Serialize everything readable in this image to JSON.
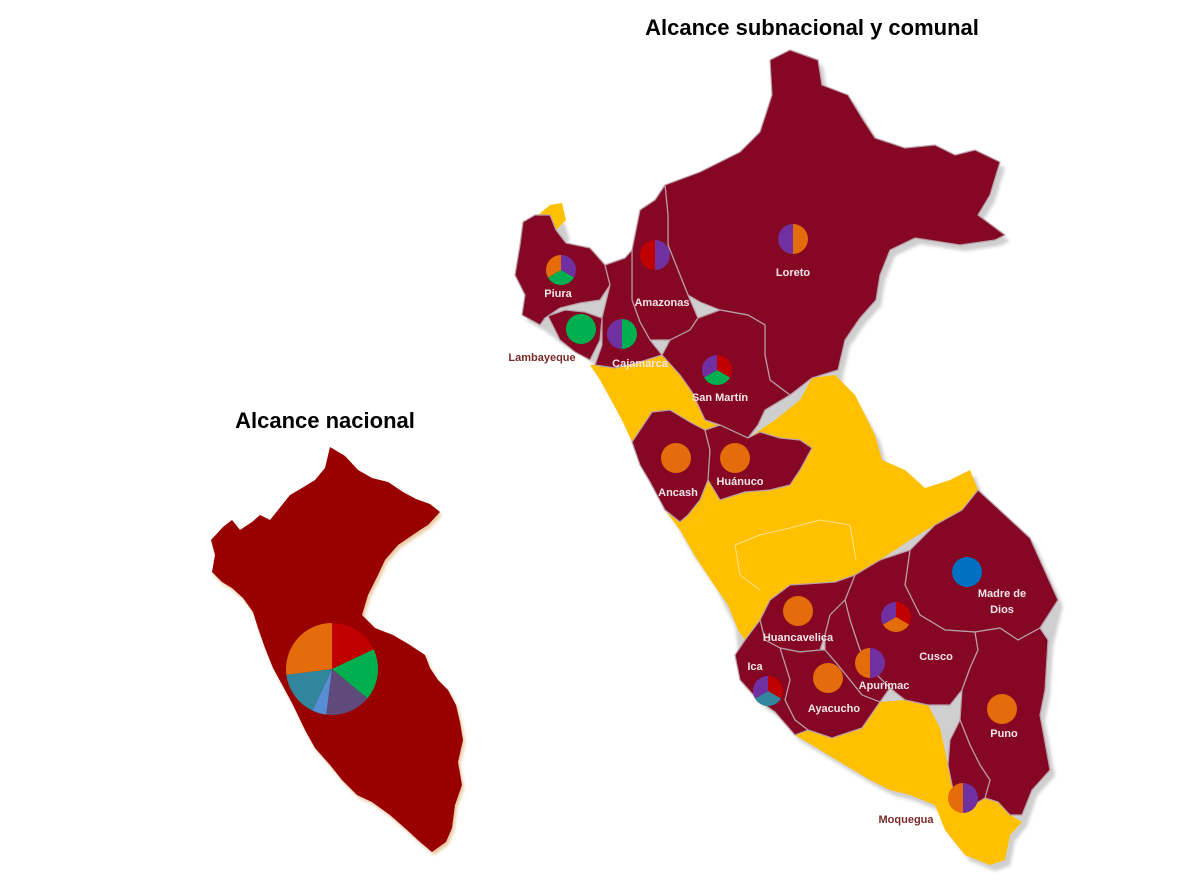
{
  "titles": {
    "subnational": "Alcance subnacional y comunal",
    "national": "Alcance nacional"
  },
  "colors": {
    "region_fill": "#850724",
    "highlight_fill": "#FFC000",
    "national_fill": "#990000",
    "border": "#b9a0a8",
    "shadow": "#cfcfcf",
    "red": "#C00000",
    "purple": "#7030A0",
    "orange": "#E46C0A",
    "green": "#00B050",
    "blue": "#0070C0",
    "teal": "#31859C",
    "lightblue": "#558ED5",
    "slate": "#604A7B"
  },
  "regions": [
    {
      "name": "Piura",
      "pie": [
        {
          "c": "purple",
          "v": 1
        },
        {
          "c": "green",
          "v": 1
        },
        {
          "c": "orange",
          "v": 1
        }
      ]
    },
    {
      "name": "Lambayeque",
      "pie": [
        {
          "c": "green",
          "v": 1
        }
      ]
    },
    {
      "name": "Cajamarca",
      "pie": [
        {
          "c": "green",
          "v": 1
        },
        {
          "c": "purple",
          "v": 1
        }
      ]
    },
    {
      "name": "Amazonas",
      "pie": [
        {
          "c": "purple",
          "v": 1
        },
        {
          "c": "red",
          "v": 1
        }
      ]
    },
    {
      "name": "Loreto",
      "pie": [
        {
          "c": "orange",
          "v": 1
        },
        {
          "c": "purple",
          "v": 1
        }
      ]
    },
    {
      "name": "San Martín",
      "pie": [
        {
          "c": "red",
          "v": 1
        },
        {
          "c": "green",
          "v": 1
        },
        {
          "c": "purple",
          "v": 1
        }
      ]
    },
    {
      "name": "Ancash",
      "pie": [
        {
          "c": "orange",
          "v": 1
        }
      ]
    },
    {
      "name": "Huánuco",
      "pie": [
        {
          "c": "orange",
          "v": 1
        }
      ]
    },
    {
      "name": "Madre de Dios",
      "pie": [
        {
          "c": "blue",
          "v": 1
        }
      ]
    },
    {
      "name": "Huancavelica",
      "pie": [
        {
          "c": "orange",
          "v": 1
        }
      ]
    },
    {
      "name": "Cusco",
      "pie": [
        {
          "c": "red",
          "v": 1
        },
        {
          "c": "orange",
          "v": 1
        },
        {
          "c": "purple",
          "v": 1
        }
      ]
    },
    {
      "name": "Apurímac",
      "pie": [
        {
          "c": "purple",
          "v": 1
        },
        {
          "c": "orange",
          "v": 1
        }
      ]
    },
    {
      "name": "Ica",
      "pie": [
        {
          "c": "red",
          "v": 1
        },
        {
          "c": "teal",
          "v": 1
        },
        {
          "c": "purple",
          "v": 1
        }
      ]
    },
    {
      "name": "Ayacucho",
      "pie": [
        {
          "c": "orange",
          "v": 1
        }
      ]
    },
    {
      "name": "Puno",
      "pie": [
        {
          "c": "orange",
          "v": 1
        }
      ]
    },
    {
      "name": "Moquegua",
      "pie": [
        {
          "c": "purple",
          "v": 1
        },
        {
          "c": "orange",
          "v": 1
        }
      ]
    }
  ],
  "national_pie": [
    {
      "c": "red",
      "v": 18
    },
    {
      "c": "green",
      "v": 18
    },
    {
      "c": "slate",
      "v": 16
    },
    {
      "c": "lightblue",
      "v": 5
    },
    {
      "c": "teal",
      "v": 16
    },
    {
      "c": "orange",
      "v": 27
    }
  ]
}
